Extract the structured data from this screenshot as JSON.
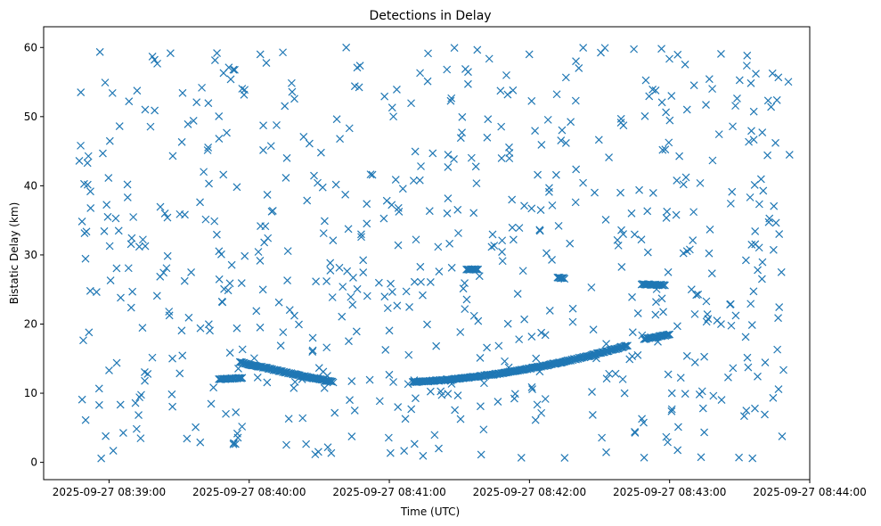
{
  "chart_data": {
    "type": "scatter",
    "title": "Detections in Delay",
    "xlabel": "Time (UTC)",
    "ylabel": "Bistatic Delay (km)",
    "x_tick_labels": [
      "2025-09-27 08:39:00",
      "2025-09-27 08:40:00",
      "2025-09-27 08:41:00",
      "2025-09-27 08:42:00",
      "2025-09-27 08:43:00",
      "2025-09-27 08:44:00"
    ],
    "x_ticks": [
      "08:39:00",
      "08:40:00",
      "08:41:00",
      "08:42:00",
      "08:43:00",
      "08:44:00"
    ],
    "xlim": [
      "08:38:32",
      "08:44:00"
    ],
    "y_ticks": [
      0,
      10,
      20,
      30,
      40,
      50,
      60
    ],
    "ylim": [
      -2.5,
      63
    ],
    "grid": false,
    "marker": "x",
    "color": "#1f77b4",
    "tracks": [
      {
        "kind": "line",
        "start": [
          "08:39:47",
          12.0
        ],
        "end": [
          "08:39:57",
          12.2
        ]
      },
      {
        "kind": "curve",
        "start": [
          "08:39:56",
          14.5
        ],
        "mid": [
          "08:40:20",
          12.7
        ],
        "end": [
          "08:40:36",
          11.6
        ]
      },
      {
        "kind": "curve",
        "start": [
          "08:41:10",
          11.6
        ],
        "mid": [
          "08:41:50",
          13.0
        ],
        "end": [
          "08:42:42",
          16.9
        ]
      },
      {
        "kind": "line",
        "start": [
          "08:42:49",
          17.8
        ],
        "end": [
          "08:43:00",
          18.5
        ]
      },
      {
        "kind": "line",
        "start": [
          "08:42:48",
          25.8
        ],
        "end": [
          "08:42:58",
          25.6
        ]
      },
      {
        "kind": "line",
        "start": [
          "08:41:33",
          27.9
        ],
        "end": [
          "08:41:38",
          27.9
        ]
      },
      {
        "kind": "line",
        "start": [
          "08:42:12",
          26.7
        ],
        "end": [
          "08:42:15",
          26.6
        ]
      }
    ],
    "clutter": {
      "description_points": 650,
      "x_range": [
        "08:38:47",
        "08:43:52"
      ],
      "y_range": [
        0.5,
        60
      ]
    }
  }
}
